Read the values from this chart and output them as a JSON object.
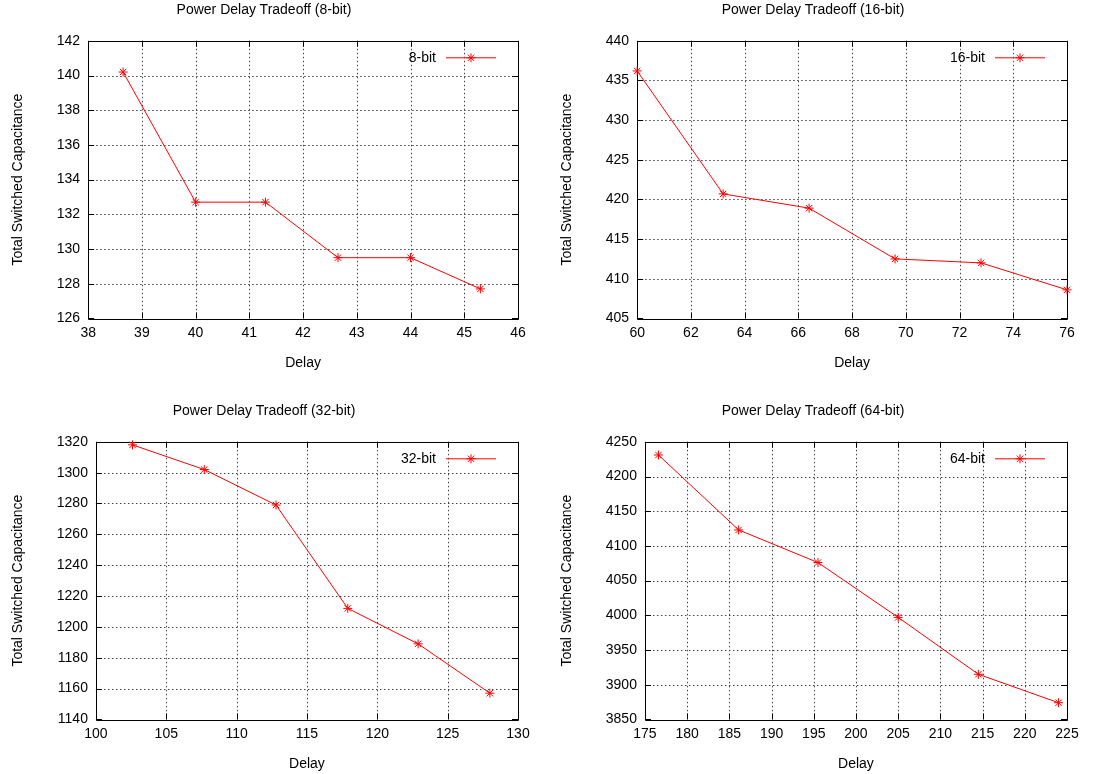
{
  "chart_data": [
    {
      "type": "line",
      "title": "Power Delay Tradeoff (8-bit)",
      "xlabel": "Delay",
      "ylabel": "Total Switched Capacitance",
      "x": [
        38.65,
        40,
        41.3,
        42.65,
        44,
        45.3
      ],
      "series": [
        {
          "name": "8-bit",
          "color": "#ff0000",
          "values": [
            140.2,
            132.7,
            132.7,
            129.5,
            129.5,
            127.7
          ]
        }
      ],
      "xlim": [
        38,
        46
      ],
      "xticks": [
        38,
        39,
        40,
        41,
        42,
        43,
        44,
        45,
        46
      ],
      "ylim": [
        126,
        142
      ],
      "yticks": [
        126,
        128,
        130,
        132,
        134,
        136,
        138,
        140,
        142
      ],
      "grid": true,
      "legend": "top right",
      "marker": "cross"
    },
    {
      "type": "line",
      "title": "Power Delay Tradeoff (16-bit)",
      "xlabel": "Delay",
      "ylabel": "Total Switched Capacitance",
      "x": [
        60,
        63.2,
        66.4,
        69.6,
        72.8,
        76
      ],
      "series": [
        {
          "name": "16-bit",
          "color": "#ff0000",
          "values": [
            436.2,
            420.7,
            418.9,
            412.5,
            412,
            408.6
          ]
        }
      ],
      "xlim": [
        60,
        76
      ],
      "xticks": [
        60,
        62,
        64,
        66,
        68,
        70,
        72,
        74,
        76
      ],
      "ylim": [
        405,
        440
      ],
      "yticks": [
        405,
        410,
        415,
        420,
        425,
        430,
        435,
        440
      ],
      "grid": true,
      "legend": "top right",
      "marker": "cross"
    },
    {
      "type": "line",
      "title": "Power Delay Tradeoff (32-bit)",
      "xlabel": "Delay",
      "ylabel": "Total Switched Capacitance",
      "x": [
        102.6,
        107.7,
        112.8,
        117.9,
        122.9,
        128
      ],
      "series": [
        {
          "name": "32-bit",
          "color": "#ff0000",
          "values": [
            1318,
            1302,
            1279,
            1212,
            1189,
            1157
          ]
        }
      ],
      "xlim": [
        100,
        130
      ],
      "xticks": [
        100,
        105,
        110,
        115,
        120,
        125,
        130
      ],
      "ylim": [
        1140,
        1320
      ],
      "yticks": [
        1140,
        1160,
        1180,
        1200,
        1220,
        1240,
        1260,
        1280,
        1300,
        1320
      ],
      "grid": true,
      "legend": "top right",
      "marker": "cross"
    },
    {
      "type": "line",
      "title": "Power Delay Tradeoff (64-bit)",
      "xlabel": "Delay",
      "ylabel": "Total Switched Capacitance",
      "x": [
        176.6,
        186.1,
        195.5,
        205,
        214.5,
        224
      ],
      "series": [
        {
          "name": "64-bit",
          "color": "#ff0000",
          "values": [
            4231,
            4123,
            4076,
            3997,
            3915,
            3874
          ]
        }
      ],
      "xlim": [
        175,
        225
      ],
      "xticks": [
        175,
        180,
        185,
        190,
        195,
        200,
        205,
        210,
        215,
        220,
        225
      ],
      "ylim": [
        3850,
        4250
      ],
      "yticks": [
        3850,
        3900,
        3950,
        4000,
        4050,
        4100,
        4150,
        4200,
        4250
      ],
      "grid": true,
      "legend": "top right",
      "marker": "cross"
    }
  ]
}
